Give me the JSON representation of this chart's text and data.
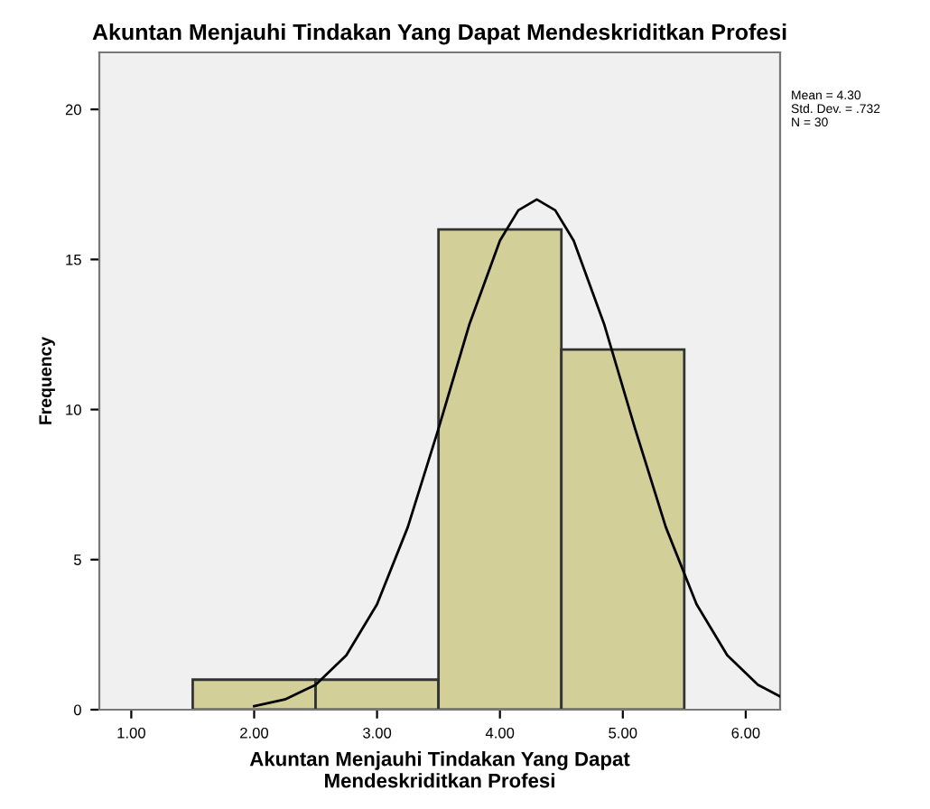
{
  "chart_data": {
    "type": "histogram",
    "title": "Akuntan Menjauhi Tindakan Yang Dapat Mendeskriditkan Profesi",
    "xlabel": "Akuntan Menjauhi Tindakan Yang Dapat\nMendeskriditkan Profesi",
    "ylabel": "Frequency",
    "bins": [
      1.5,
      2.5,
      3.5,
      4.5,
      5.5
    ],
    "values": [
      1,
      1,
      16,
      12
    ],
    "color": "#d2cf98",
    "series": [
      {
        "type": "line",
        "color": "#000000",
        "x": [
          2.0,
          2.25,
          2.5,
          2.75,
          3.0,
          3.25,
          3.5,
          3.75,
          4.0,
          4.15,
          4.3,
          4.45,
          4.6,
          4.85,
          5.1,
          5.35,
          5.6,
          5.85,
          6.1,
          6.28
        ],
        "values": [
          0.12,
          0.34,
          0.83,
          1.81,
          3.51,
          6.08,
          9.36,
          12.82,
          15.63,
          16.64,
          17,
          16.64,
          15.63,
          12.82,
          9.36,
          6.08,
          3.51,
          1.81,
          0.83,
          0.44
        ]
      }
    ],
    "annotations": [
      "Mean = 4.30\nStd. Dev. = .732\nN = 30"
    ],
    "xlim": [
      0.74,
      6.28
    ],
    "xticks": [
      {
        "value": 1,
        "label": "1.00"
      },
      {
        "value": 2,
        "label": "2.00"
      },
      {
        "value": 3,
        "label": "3.00"
      },
      {
        "value": 4,
        "label": "4.00"
      },
      {
        "value": 5,
        "label": "5.00"
      },
      {
        "value": 6,
        "label": "6.00"
      }
    ],
    "ylim": [
      0,
      21.9
    ],
    "yticks": [
      0,
      5,
      10,
      15,
      20
    ],
    "grid": false,
    "legend": false
  }
}
